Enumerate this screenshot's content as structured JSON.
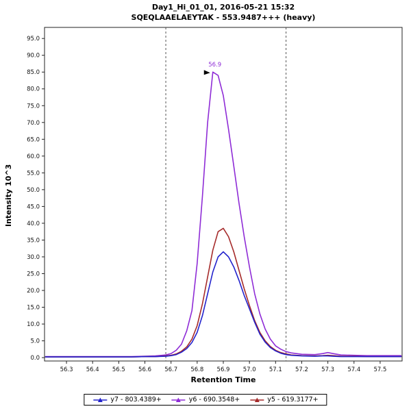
{
  "chart_data": {
    "type": "line",
    "title": "Day1_Hi_01_01, 2016-05-21 15:32",
    "subtitle": "SQEQLAAELAEYTAK - 553.9487+++ (heavy)",
    "xlabel": "Retention Time",
    "ylabel": "Intensity 10^3",
    "xlim": [
      56.216,
      57.584
    ],
    "ylim": [
      -1,
      98.3
    ],
    "x_ticks": [
      56.3,
      56.4,
      56.5,
      56.6,
      56.7,
      56.8,
      56.9,
      57.0,
      57.1,
      57.2,
      57.3,
      57.4,
      57.5
    ],
    "y_ticks": [
      0,
      5,
      10,
      15,
      20,
      25,
      30,
      35,
      40,
      45,
      50,
      55,
      60,
      65,
      70,
      75,
      80,
      85,
      90,
      95
    ],
    "grid": false,
    "legend_position": "bottom",
    "integration_boundaries": [
      56.68,
      57.14
    ],
    "peak_annotation": {
      "text": "56.9",
      "x": 56.86,
      "y": 85,
      "color": "#8e2bd6"
    },
    "draw_order": [
      1,
      2,
      0
    ],
    "x_shared": [
      56.22,
      56.3,
      56.4,
      56.5,
      56.55,
      56.6,
      56.64,
      56.68,
      56.7,
      56.72,
      56.74,
      56.76,
      56.78,
      56.8,
      56.82,
      56.84,
      56.86,
      56.88,
      56.9,
      56.92,
      56.94,
      56.96,
      56.98,
      57.0,
      57.02,
      57.04,
      57.06,
      57.08,
      57.1,
      57.12,
      57.14,
      57.16,
      57.2,
      57.25,
      57.28,
      57.3,
      57.32,
      57.35,
      57.4,
      57.45,
      57.5,
      57.58
    ],
    "series": [
      {
        "id": "y7",
        "name": "y7 - 803.4389+",
        "color": "#2222cc",
        "values": [
          0.2,
          0.2,
          0.2,
          0.2,
          0.2,
          0.3,
          0.3,
          0.4,
          0.6,
          0.9,
          1.6,
          2.7,
          4.5,
          7.5,
          12.5,
          19,
          25.5,
          30,
          31.5,
          30,
          27,
          23,
          18.5,
          14.5,
          10.5,
          7,
          4.6,
          3,
          2,
          1.3,
          0.9,
          0.7,
          0.5,
          0.4,
          0.5,
          0.5,
          0.4,
          0.3,
          0.3,
          0.3,
          0.3,
          0.3
        ]
      },
      {
        "id": "y6",
        "name": "y6 - 690.3548+",
        "color": "#8e2bd6",
        "values": [
          0.3,
          0.3,
          0.3,
          0.3,
          0.3,
          0.4,
          0.5,
          0.8,
          1.2,
          2.2,
          4.0,
          8.0,
          14,
          28,
          48,
          70,
          85,
          84,
          78,
          68,
          57,
          46,
          36,
          27,
          19,
          13,
          8.5,
          5.5,
          3.5,
          2.5,
          1.8,
          1.4,
          1.0,
          0.9,
          1.2,
          1.5,
          1.2,
          0.8,
          0.7,
          0.6,
          0.6,
          0.6
        ]
      },
      {
        "id": "y5",
        "name": "y5 - 619.3177+",
        "color": "#a52a2a",
        "values": [
          0.2,
          0.2,
          0.2,
          0.2,
          0.2,
          0.3,
          0.3,
          0.5,
          0.7,
          1.1,
          1.9,
          3.2,
          5.5,
          9.5,
          16,
          24,
          32,
          37.5,
          38.5,
          36,
          31.5,
          26,
          20.5,
          15.5,
          11,
          7.5,
          5,
          3.3,
          2.2,
          1.5,
          1.1,
          0.8,
          0.6,
          0.5,
          0.6,
          0.7,
          0.6,
          0.4,
          0.4,
          0.3,
          0.3,
          0.3
        ]
      }
    ]
  }
}
